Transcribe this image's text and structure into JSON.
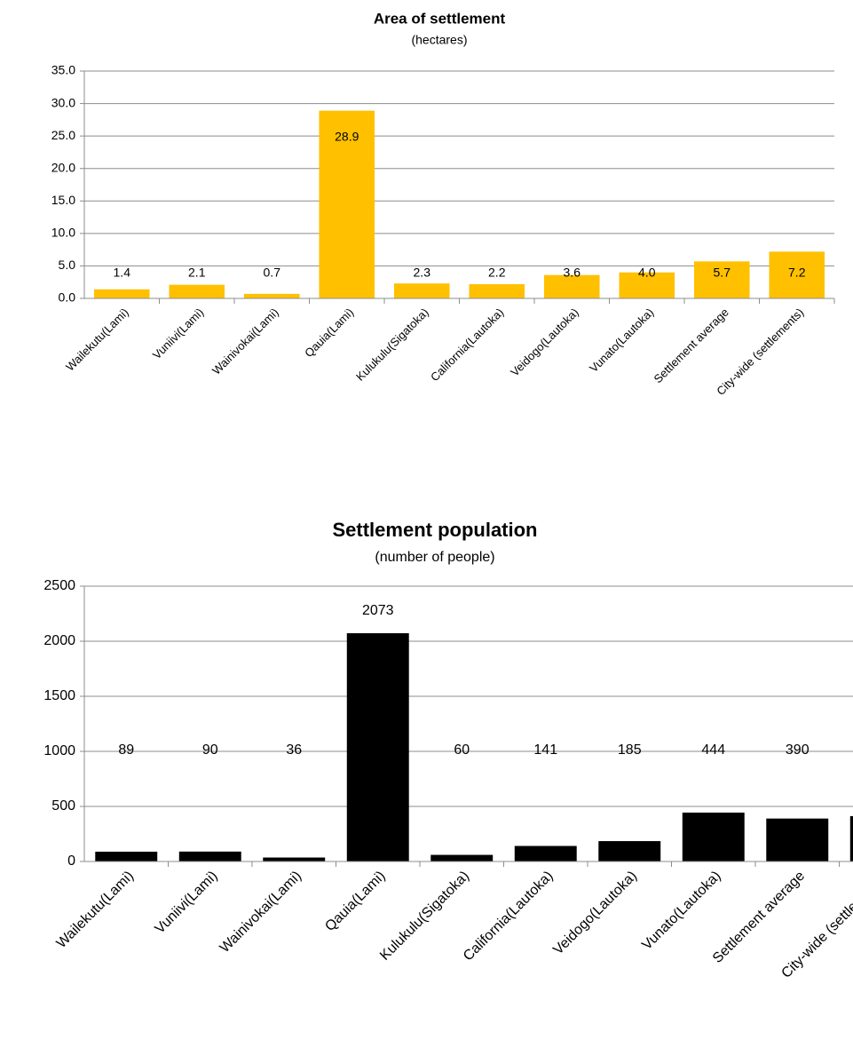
{
  "chart_data": [
    {
      "type": "bar",
      "title": "Area of settlement",
      "subtitle": "(hectares)",
      "categories": [
        "Wailekutu(Lami)",
        "Vuniivi(Lami)",
        "Wainivokai(Lami)",
        "Qauia(Lami)",
        "Kulukulu(Sigatoka)",
        "California(Lautoka)",
        "Veidogo(Lautoka)",
        "Vunato(Lautoka)",
        "Settlement average",
        "City-wide (settlements)"
      ],
      "values": [
        1.4,
        2.1,
        0.7,
        28.9,
        2.3,
        2.2,
        3.6,
        4.0,
        5.7,
        7.2
      ],
      "value_labels": [
        "1.4",
        "2.1",
        "0.7",
        "28.9",
        "2.3",
        "2.2",
        "3.6",
        "4.0",
        "5.7",
        "7.2"
      ],
      "color": "#ffc000",
      "ylim": [
        0,
        35
      ],
      "yticks": [
        {
          "value": 0,
          "label": "0.0"
        },
        {
          "value": 5,
          "label": "5.0"
        },
        {
          "value": 10,
          "label": "10.0"
        },
        {
          "value": 15,
          "label": "15.0"
        },
        {
          "value": 20,
          "label": "20.0"
        },
        {
          "value": 25,
          "label": "25.0"
        },
        {
          "value": 30,
          "label": "30.0"
        },
        {
          "value": 35,
          "label": "35.0"
        }
      ],
      "grid": true
    },
    {
      "type": "bar",
      "title": "Settlement population",
      "subtitle": "(number of people)",
      "categories": [
        "Wailekutu(Lami)",
        "Vuniivi(Lami)",
        "Wainivokai(Lami)",
        "Qauia(Lami)",
        "Kulukulu(Sigatoka)",
        "California(Lautoka)",
        "Veidogo(Lautoka)",
        "Vunato(Lautoka)",
        "Settlement average",
        "City-wide (settlements)"
      ],
      "values": [
        89,
        90,
        36,
        2073,
        60,
        141,
        185,
        444,
        390,
        412
      ],
      "color": "#000000",
      "ylim": [
        0,
        2500
      ],
      "yticks": [
        0,
        500,
        1000,
        1500,
        2000,
        2500
      ],
      "grid": true
    }
  ]
}
